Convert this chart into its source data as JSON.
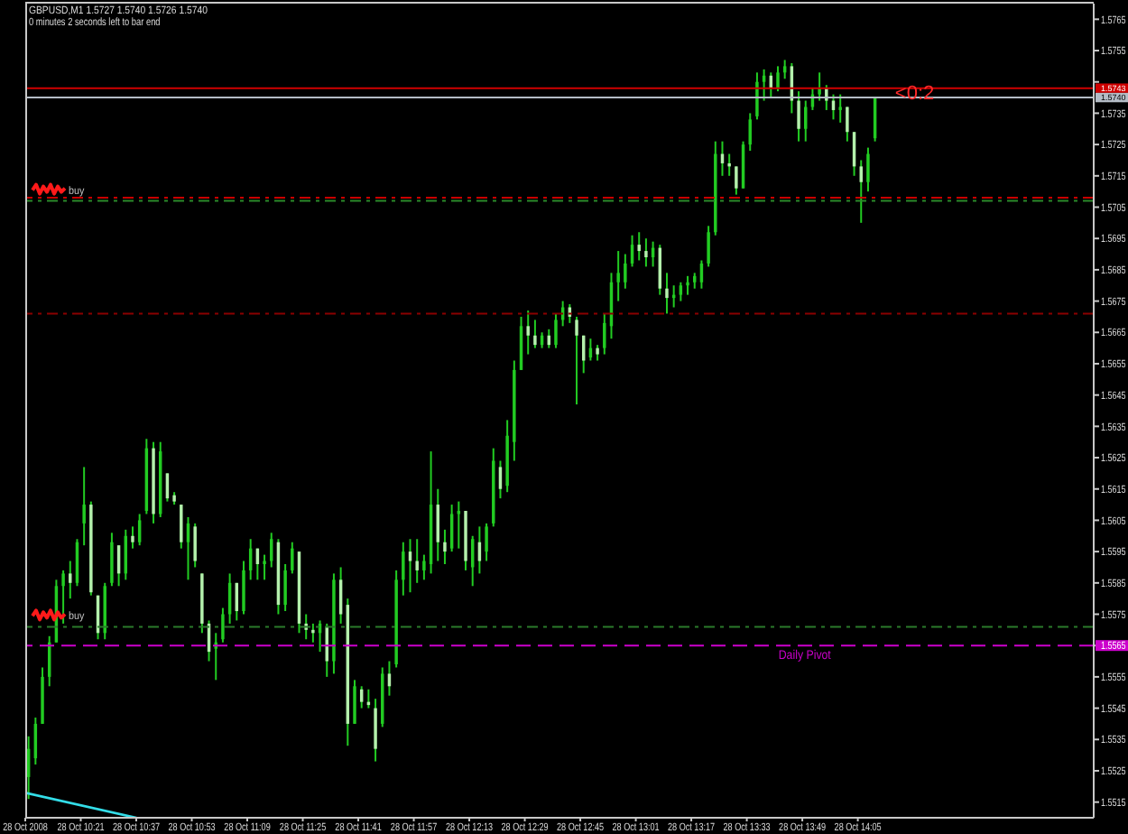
{
  "chart_data": {
    "type": "candlestick",
    "title": "GBPUSD,M1 1.5727 1.5740 1.5726 1.5740",
    "subtitle": "0 minutes 2 seconds left to bar end",
    "annotations": [
      "<0:2"
    ],
    "xlim": [
      "2008-10-28T10:05",
      "2008-10-28T15:13"
    ],
    "xticks": [
      {
        "value": "2008-10-28T10:05",
        "label": "28 Oct 2008"
      },
      {
        "value": "2008-10-28T10:21",
        "label": "28 Oct 10:21"
      },
      {
        "value": "2008-10-28T10:37",
        "label": "28 Oct 10:37"
      },
      {
        "value": "2008-10-28T10:53",
        "label": "28 Oct 10:53"
      },
      {
        "value": "2008-10-28T11:09",
        "label": "28 Oct 11:09"
      },
      {
        "value": "2008-10-28T11:25",
        "label": "28 Oct 11:25"
      },
      {
        "value": "2008-10-28T11:41",
        "label": "28 Oct 11:41"
      },
      {
        "value": "2008-10-28T11:57",
        "label": "28 Oct 11:57"
      },
      {
        "value": "2008-10-28T12:13",
        "label": "28 Oct 12:13"
      },
      {
        "value": "2008-10-28T12:29",
        "label": "28 Oct 12:29"
      },
      {
        "value": "2008-10-28T12:45",
        "label": "28 Oct 12:45"
      },
      {
        "value": "2008-10-28T13:01",
        "label": "28 Oct 13:01"
      },
      {
        "value": "2008-10-28T13:17",
        "label": "28 Oct 13:17"
      },
      {
        "value": "2008-10-28T13:33",
        "label": "28 Oct 13:33"
      },
      {
        "value": "2008-10-28T13:49",
        "label": "28 Oct 13:49"
      },
      {
        "value": "2008-10-28T14:05",
        "label": "28 Oct 14:05"
      }
    ],
    "ylim": [
      1.551,
      1.577
    ],
    "yticks": [
      1.5515,
      1.5525,
      1.5535,
      1.5545,
      1.5555,
      1.5565,
      1.5575,
      1.5585,
      1.5595,
      1.5605,
      1.5615,
      1.5625,
      1.5635,
      1.5645,
      1.5655,
      1.5665,
      1.5675,
      1.5685,
      1.5695,
      1.5705,
      1.5715,
      1.5725,
      1.5735,
      {
        "value": 1.5745,
        "label": null
      },
      1.5755,
      1.5765
    ],
    "series": [
      {
        "type": "line",
        "color": "#33dde8",
        "x": [
          "2008-10-28T10:05",
          "2008-10-28T10:37"
        ],
        "values": [
          1.5518,
          1.551
        ]
      },
      {
        "color": "#22cc22",
        "colors": [
          "#22cc22",
          "#22cc22",
          "#22cc22",
          "#22cc22",
          "#22cc22",
          "#22cc22",
          "#b4f0ac",
          "#22cc22",
          "#22cc22",
          "#b4f0ac",
          "#b4f0ac",
          "#22cc22",
          "#22cc22",
          "#b4f0ac",
          "#22cc22",
          "#b4f0ac",
          "#22cc22",
          "#22cc22",
          "#b4f0ac",
          "#22cc22",
          "#b4f0ac",
          "#b4f0ac",
          "#b4f0ac",
          "#22cc22",
          "#b4f0ac",
          "#b4f0ac",
          "#b4f0ac",
          "#22cc22",
          "#22cc22",
          "#22cc22",
          "#b4f0ac",
          "#22cc22",
          "#22cc22",
          "#b4f0ac",
          "#22cc22",
          "#22cc22",
          "#b4f0ac",
          "#22cc22",
          "#22cc22",
          "#b4f0ac",
          "#b4f0ac",
          "#b4f0ac",
          "#22cc22",
          "#b4f0ac",
          "#22cc22",
          "#b4f0ac",
          "#b4f0ac",
          "#22cc22",
          "#b4f0ac",
          "#b4f0ac",
          "#b4f0ac",
          "#22cc22",
          "#b4f0ac",
          "#22cc22",
          "#22cc22",
          "#b4f0ac",
          "#b4f0ac",
          "#22cc22",
          "#22cc22",
          "#b4f0ac",
          "#b4f0ac",
          "#22cc22",
          "#22cc22",
          "#b4f0ac",
          "#22cc22",
          "#b4f0ac",
          "#22cc22",
          "#22cc22",
          "#b4f0ac",
          "#22cc22",
          "#22cc22",
          "#22cc22",
          "#b4f0ac",
          "#b4f0ac",
          "#22cc22",
          "#b4f0ac",
          "#22cc22",
          "#22cc22",
          "#b4f0ac",
          "#b4f0ac",
          "#b4f0ac",
          "#22cc22",
          "#b4f0ac",
          "#22cc22",
          "#22cc22",
          "#22cc22",
          "#22cc22",
          "#22cc22",
          "#b4f0ac",
          "#b4f0ac",
          "#22cc22",
          "#b4f0ac",
          "#b4f0ac",
          "#22cc22",
          "#22cc22",
          "#22cc22",
          "#22cc22",
          "#22cc22",
          "#22cc22",
          "#22cc22",
          "#b4f0ac",
          "#b4f0ac",
          "#b4f0ac",
          "#22cc22",
          "#22cc22",
          "#22cc22",
          "#22cc22",
          "#b4f0ac",
          "#22cc22",
          "#22cc22",
          "#b4f0ac",
          "#b4f0ac",
          "#22cc22",
          "#22cc22",
          "#22cc22",
          "#b4f0ac",
          "#b4f0ac",
          "#22cc22",
          "#b4f0ac",
          "#b4f0ac",
          "#b4f0ac",
          "#22cc22",
          "#22cc22"
        ],
        "x": [
          "2008-10-28T10:06",
          "2008-10-28T10:08",
          "2008-10-28T10:10",
          "2008-10-28T10:12",
          "2008-10-28T10:14",
          "2008-10-28T10:16",
          "2008-10-28T10:18",
          "2008-10-28T10:20",
          "2008-10-28T10:22",
          "2008-10-28T10:24",
          "2008-10-28T10:26",
          "2008-10-28T10:28",
          "2008-10-28T10:30",
          "2008-10-28T10:32",
          "2008-10-28T10:34",
          "2008-10-28T10:36",
          "2008-10-28T10:38",
          "2008-10-28T10:40",
          "2008-10-28T10:42",
          "2008-10-28T10:44",
          "2008-10-28T10:46",
          "2008-10-28T10:48",
          "2008-10-28T10:50",
          "2008-10-28T10:52",
          "2008-10-28T10:54",
          "2008-10-28T10:56",
          "2008-10-28T10:58",
          "2008-10-28T11:00",
          "2008-10-28T11:02",
          "2008-10-28T11:04",
          "2008-10-28T11:06",
          "2008-10-28T11:08",
          "2008-10-28T11:10",
          "2008-10-28T11:12",
          "2008-10-28T11:14",
          "2008-10-28T11:16",
          "2008-10-28T11:18",
          "2008-10-28T11:20",
          "2008-10-28T11:22",
          "2008-10-28T11:24",
          "2008-10-28T11:26",
          "2008-10-28T11:28",
          "2008-10-28T11:30",
          "2008-10-28T11:32",
          "2008-10-28T11:34",
          "2008-10-28T11:36",
          "2008-10-28T11:38",
          "2008-10-28T11:40",
          "2008-10-28T11:42",
          "2008-10-28T11:44",
          "2008-10-28T11:46",
          "2008-10-28T11:48",
          "2008-10-28T11:50",
          "2008-10-28T11:52",
          "2008-10-28T11:54",
          "2008-10-28T11:56",
          "2008-10-28T11:58",
          "2008-10-28T12:00",
          "2008-10-28T12:02",
          "2008-10-28T12:04",
          "2008-10-28T12:06",
          "2008-10-28T12:08",
          "2008-10-28T12:10",
          "2008-10-28T12:12",
          "2008-10-28T12:14",
          "2008-10-28T12:16",
          "2008-10-28T12:18",
          "2008-10-28T12:20",
          "2008-10-28T12:22",
          "2008-10-28T12:24",
          "2008-10-28T12:26",
          "2008-10-28T12:28",
          "2008-10-28T12:30",
          "2008-10-28T12:32",
          "2008-10-28T12:34",
          "2008-10-28T12:36",
          "2008-10-28T12:38",
          "2008-10-28T12:40",
          "2008-10-28T12:42",
          "2008-10-28T12:44",
          "2008-10-28T12:46",
          "2008-10-28T12:48",
          "2008-10-28T12:50",
          "2008-10-28T12:52",
          "2008-10-28T12:54",
          "2008-10-28T12:56",
          "2008-10-28T12:58",
          "2008-10-28T13:00",
          "2008-10-28T13:02",
          "2008-10-28T13:04",
          "2008-10-28T13:06",
          "2008-10-28T13:08",
          "2008-10-28T13:10",
          "2008-10-28T13:12",
          "2008-10-28T13:14",
          "2008-10-28T13:16",
          "2008-10-28T13:18",
          "2008-10-28T13:20",
          "2008-10-28T13:22",
          "2008-10-28T13:24",
          "2008-10-28T13:26",
          "2008-10-28T13:28",
          "2008-10-28T13:30",
          "2008-10-28T13:32",
          "2008-10-28T13:34",
          "2008-10-28T13:36",
          "2008-10-28T13:38",
          "2008-10-28T13:40",
          "2008-10-28T13:42",
          "2008-10-28T13:44",
          "2008-10-28T13:46",
          "2008-10-28T13:48",
          "2008-10-28T13:50",
          "2008-10-28T13:52",
          "2008-10-28T13:54",
          "2008-10-28T13:56",
          "2008-10-28T13:58",
          "2008-10-28T14:00",
          "2008-10-28T14:02",
          "2008-10-28T14:04",
          "2008-10-28T14:06",
          "2008-10-28T14:08",
          "2008-10-28T14:10"
        ],
        "ohlc": [
          [
            1.5523,
            1.5536,
            1.5516,
            1.5532
          ],
          [
            1.5529,
            1.5542,
            1.5527,
            1.554
          ],
          [
            1.554,
            1.5558,
            1.554,
            1.5555
          ],
          [
            1.5555,
            1.5568,
            1.5552,
            1.5566
          ],
          [
            1.5566,
            1.5586,
            1.5566,
            1.5584
          ],
          [
            1.5584,
            1.5589,
            1.5572,
            1.5588
          ],
          [
            1.5588,
            1.5592,
            1.558,
            1.5585
          ],
          [
            1.5585,
            1.5599,
            1.5584,
            1.5598
          ],
          [
            1.5604,
            1.5622,
            1.5597,
            1.561
          ],
          [
            1.561,
            1.5611,
            1.5581,
            1.5582
          ],
          [
            1.5581,
            1.5581,
            1.5567,
            1.5569
          ],
          [
            1.5569,
            1.5585,
            1.5567,
            1.5584
          ],
          [
            1.5585,
            1.5601,
            1.5584,
            1.5598
          ],
          [
            1.5597,
            1.5597,
            1.5584,
            1.5588
          ],
          [
            1.5588,
            1.5602,
            1.5586,
            1.56
          ],
          [
            1.56,
            1.5603,
            1.5596,
            1.5598
          ],
          [
            1.5598,
            1.5607,
            1.5597,
            1.5605
          ],
          [
            1.5608,
            1.5631,
            1.5607,
            1.5628
          ],
          [
            1.5628,
            1.563,
            1.5604,
            1.5607
          ],
          [
            1.5607,
            1.563,
            1.5606,
            1.5627
          ],
          [
            1.562,
            1.562,
            1.5611,
            1.5612
          ],
          [
            1.5613,
            1.5614,
            1.561,
            1.5611
          ],
          [
            1.561,
            1.561,
            1.5596,
            1.5598
          ],
          [
            1.5598,
            1.5606,
            1.5586,
            1.5604
          ],
          [
            1.5603,
            1.5604,
            1.559,
            1.5592
          ],
          [
            1.5588,
            1.5588,
            1.5569,
            1.5572
          ],
          [
            1.5572,
            1.5573,
            1.556,
            1.5563
          ],
          [
            1.5564,
            1.5569,
            1.5554,
            1.5566
          ],
          [
            1.5567,
            1.5577,
            1.5566,
            1.5575
          ],
          [
            1.5575,
            1.5588,
            1.5572,
            1.5585
          ],
          [
            1.5585,
            1.5585,
            1.5573,
            1.5576
          ],
          [
            1.5576,
            1.5592,
            1.5575,
            1.5589
          ],
          [
            1.5589,
            1.5599,
            1.5586,
            1.5596
          ],
          [
            1.5596,
            1.5596,
            1.5586,
            1.5591
          ],
          [
            1.5591,
            1.5594,
            1.5586,
            1.5592
          ],
          [
            1.5592,
            1.5601,
            1.559,
            1.5599
          ],
          [
            1.5598,
            1.5599,
            1.5575,
            1.5578
          ],
          [
            1.5578,
            1.5591,
            1.5576,
            1.5589
          ],
          [
            1.5589,
            1.5598,
            1.5588,
            1.5596
          ],
          [
            1.5595,
            1.5595,
            1.5569,
            1.5572
          ],
          [
            1.5572,
            1.5575,
            1.5567,
            1.557
          ],
          [
            1.557,
            1.5572,
            1.5566,
            1.5569
          ],
          [
            1.5569,
            1.5573,
            1.5563,
            1.5572
          ],
          [
            1.5571,
            1.5572,
            1.5555,
            1.556
          ],
          [
            1.556,
            1.5588,
            1.5556,
            1.5586
          ],
          [
            1.5586,
            1.559,
            1.5572,
            1.5575
          ],
          [
            1.5578,
            1.558,
            1.5533,
            1.554
          ],
          [
            1.554,
            1.5554,
            1.554,
            1.5552
          ],
          [
            1.5551,
            1.5552,
            1.5545,
            1.5547
          ],
          [
            1.5547,
            1.5551,
            1.5545,
            1.5546
          ],
          [
            1.5545,
            1.5548,
            1.5528,
            1.5532
          ],
          [
            1.554,
            1.5558,
            1.5539,
            1.5556
          ],
          [
            1.5556,
            1.556,
            1.5549,
            1.5552
          ],
          [
            1.5559,
            1.5589,
            1.5558,
            1.5586
          ],
          [
            1.5586,
            1.5598,
            1.5581,
            1.5595
          ],
          [
            1.5595,
            1.5599,
            1.5582,
            1.5592
          ],
          [
            1.5592,
            1.5599,
            1.5585,
            1.5589
          ],
          [
            1.5589,
            1.5594,
            1.5586,
            1.5592
          ],
          [
            1.5591,
            1.5627,
            1.5588,
            1.561
          ],
          [
            1.561,
            1.5615,
            1.5592,
            1.5598
          ],
          [
            1.5598,
            1.5602,
            1.5591,
            1.5595
          ],
          [
            1.5596,
            1.561,
            1.5595,
            1.5607
          ],
          [
            1.5607,
            1.5611,
            1.5596,
            1.5608
          ],
          [
            1.5608,
            1.5608,
            1.5589,
            1.5592
          ],
          [
            1.559,
            1.56,
            1.5584,
            1.5599
          ],
          [
            1.5598,
            1.5603,
            1.5588,
            1.5592
          ],
          [
            1.5595,
            1.5604,
            1.5592,
            1.5603
          ],
          [
            1.5604,
            1.5628,
            1.5603,
            1.5624
          ],
          [
            1.5622,
            1.5624,
            1.5612,
            1.5615
          ],
          [
            1.5616,
            1.5637,
            1.5614,
            1.5632
          ],
          [
            1.563,
            1.5656,
            1.5624,
            1.5653
          ],
          [
            1.5653,
            1.567,
            1.5653,
            1.5667
          ],
          [
            1.5667,
            1.5672,
            1.5658,
            1.5664
          ],
          [
            1.5664,
            1.5669,
            1.566,
            1.5661
          ],
          [
            1.5661,
            1.5665,
            1.566,
            1.5664
          ],
          [
            1.5664,
            1.5666,
            1.566,
            1.5661
          ],
          [
            1.5661,
            1.5671,
            1.566,
            1.5669
          ],
          [
            1.5669,
            1.5675,
            1.5667,
            1.5673
          ],
          [
            1.5673,
            1.5674,
            1.5668,
            1.567
          ],
          [
            1.5669,
            1.567,
            1.5642,
            1.5664
          ],
          [
            1.5664,
            1.5664,
            1.5652,
            1.5656
          ],
          [
            1.5657,
            1.5663,
            1.5656,
            1.566
          ],
          [
            1.566,
            1.5661,
            1.5656,
            1.5658
          ],
          [
            1.566,
            1.5671,
            1.5658,
            1.5668
          ],
          [
            1.5667,
            1.5684,
            1.5663,
            1.5681
          ],
          [
            1.5681,
            1.5691,
            1.5675,
            1.5684
          ],
          [
            1.5681,
            1.569,
            1.5679,
            1.5687
          ],
          [
            1.5687,
            1.5696,
            1.5686,
            1.5693
          ],
          [
            1.5693,
            1.5697,
            1.5688,
            1.5691
          ],
          [
            1.5691,
            1.5695,
            1.5686,
            1.5689
          ],
          [
            1.5689,
            1.5694,
            1.5686,
            1.5692
          ],
          [
            1.5692,
            1.5693,
            1.5677,
            1.5679
          ],
          [
            1.5679,
            1.5684,
            1.5671,
            1.5676
          ],
          [
            1.5676,
            1.568,
            1.5673,
            1.5677
          ],
          [
            1.5677,
            1.5681,
            1.5675,
            1.568
          ],
          [
            1.568,
            1.5683,
            1.5677,
            1.5681
          ],
          [
            1.5681,
            1.5684,
            1.5679,
            1.5683
          ],
          [
            1.5681,
            1.5688,
            1.5679,
            1.5687
          ],
          [
            1.5687,
            1.5699,
            1.5686,
            1.5697
          ],
          [
            1.5697,
            1.5726,
            1.5696,
            1.5722
          ],
          [
            1.5722,
            1.5726,
            1.5715,
            1.5719
          ],
          [
            1.5719,
            1.5722,
            1.5715,
            1.5718
          ],
          [
            1.5718,
            1.5718,
            1.5709,
            1.5711
          ],
          [
            1.5711,
            1.5726,
            1.5711,
            1.5725
          ],
          [
            1.5725,
            1.5735,
            1.5723,
            1.5733
          ],
          [
            1.5734,
            1.5748,
            1.5733,
            1.5745
          ],
          [
            1.5745,
            1.5749,
            1.5739,
            1.5747
          ],
          [
            1.5747,
            1.5748,
            1.574,
            1.5743
          ],
          [
            1.5743,
            1.575,
            1.5742,
            1.5748
          ],
          [
            1.5748,
            1.5752,
            1.5746,
            1.575
          ],
          [
            1.575,
            1.5751,
            1.5735,
            1.5739
          ],
          [
            1.5739,
            1.5742,
            1.5726,
            1.573
          ],
          [
            1.573,
            1.5739,
            1.5726,
            1.5737
          ],
          [
            1.5737,
            1.5743,
            1.5736,
            1.5741
          ],
          [
            1.5741,
            1.5748,
            1.5739,
            1.5743
          ],
          [
            1.5743,
            1.5744,
            1.5736,
            1.5739
          ],
          [
            1.5739,
            1.5741,
            1.5733,
            1.5736
          ],
          [
            1.5736,
            1.5741,
            1.5732,
            1.5737
          ],
          [
            1.5737,
            1.5737,
            1.5726,
            1.5729
          ],
          [
            1.5729,
            1.5729,
            1.5715,
            1.5718
          ],
          [
            1.5718,
            1.572,
            1.57,
            1.5713
          ],
          [
            1.5713,
            1.5724,
            1.571,
            1.5722
          ],
          [
            1.5727,
            1.574,
            1.5726,
            1.574
          ]
        ]
      }
    ],
    "ref_lines": [
      {
        "axis": "y",
        "value": 1.5708,
        "color": "#c80000",
        "line_style": "dotted"
      },
      {
        "axis": "y",
        "value": 1.5707,
        "color": "#2a8a2a",
        "line_style": "dotted",
        "label": "buy"
      },
      {
        "axis": "y",
        "value": 1.5671,
        "color": "#8b0000",
        "line_style": "dotted"
      },
      {
        "axis": "y",
        "value": 1.5571,
        "color": "#2a7a2a",
        "line_style": "dotted",
        "label": "buy"
      },
      {
        "axis": "y",
        "value": 1.5565,
        "color": "#cc00cc",
        "line_style": "dashed",
        "label": "Daily Pivot"
      },
      {
        "axis": "y",
        "value": 1.5743,
        "color": "#d00000",
        "line_style": "solid",
        "label": "1.5743"
      },
      {
        "axis": "y",
        "value": 1.574,
        "color": "#b4bcc6",
        "line_style": "solid",
        "label": "1.5740"
      }
    ]
  }
}
